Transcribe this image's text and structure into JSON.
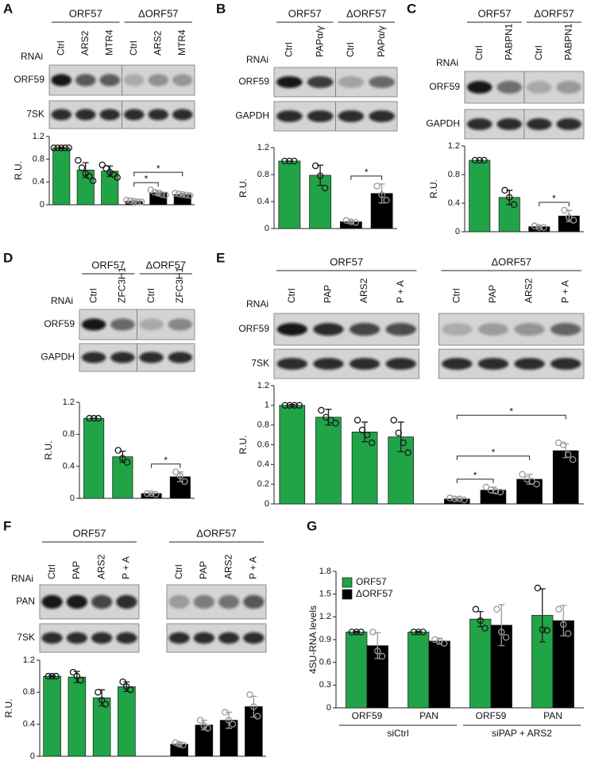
{
  "chart_data": [
    {
      "type": "bar",
      "panel": "A",
      "groups": [
        "ORF57",
        "ΔORF57"
      ],
      "rnai_label": "RNAi",
      "lanes": [
        "Ctrl",
        "ARS2",
        "MTR4",
        "Ctrl",
        "ARS2",
        "MTR4"
      ],
      "blots": [
        "ORF59",
        "7SK"
      ],
      "ylabel": "R.U.",
      "values": [
        1.0,
        0.61,
        0.59,
        0.06,
        0.21,
        0.18
      ],
      "errors": [
        0.01,
        0.13,
        0.09,
        0.02,
        0.04,
        0.02
      ],
      "points": [
        [
          1,
          1,
          1,
          1,
          1
        ],
        [
          0.78,
          0.65,
          0.55,
          0.5,
          0.42
        ],
        [
          0.7,
          0.64,
          0.57,
          0.53,
          0.48
        ],
        [
          0.08,
          0.07,
          0.06,
          0.05,
          0.05
        ],
        [
          0.26,
          0.22,
          0.2,
          0.18,
          0.17
        ],
        [
          0.2,
          0.19,
          0.18,
          0.17,
          0.16
        ]
      ],
      "colors": [
        "#21a448",
        "#000000"
      ],
      "ylim": [
        0,
        1.2
      ],
      "yticks": [
        0,
        0.4,
        0.8,
        1.2
      ],
      "significance": [
        {
          "from": 3,
          "to": 4,
          "label": "*"
        },
        {
          "from": 3,
          "to": 5,
          "label": "*"
        }
      ]
    },
    {
      "type": "bar",
      "panel": "B",
      "groups": [
        "ORF57",
        "ΔORF57"
      ],
      "rnai_label": "RNAi",
      "lanes": [
        "Ctrl",
        "PAPα/γ",
        "Ctrl",
        "PAPα/γ"
      ],
      "blots": [
        "ORF59",
        "GAPDH"
      ],
      "ylabel": "R.U.",
      "values": [
        1.0,
        0.79,
        0.1,
        0.52
      ],
      "errors": [
        0.0,
        0.15,
        0.02,
        0.14
      ],
      "points": [
        [
          1,
          1,
          1
        ],
        [
          0.93,
          0.78,
          0.6
        ],
        [
          0.12,
          0.1,
          0.09
        ],
        [
          0.63,
          0.5,
          0.42
        ]
      ],
      "colors": [
        "#21a448",
        "#000000"
      ],
      "ylim": [
        0,
        1.2
      ],
      "yticks": [
        0,
        0.4,
        0.8,
        1.2
      ],
      "significance": [
        {
          "from": 2,
          "to": 3,
          "label": "*"
        }
      ]
    },
    {
      "type": "bar",
      "panel": "C",
      "groups": [
        "ORF57",
        "ΔORF57"
      ],
      "rnai_label": "RNAi",
      "lanes": [
        "Ctrl",
        "PABPN1",
        "Ctrl",
        "PABPN1"
      ],
      "blots": [
        "ORF59",
        "GAPDH"
      ],
      "ylabel": "R.U.",
      "values": [
        1.0,
        0.48,
        0.07,
        0.22
      ],
      "errors": [
        0.0,
        0.1,
        0.02,
        0.08
      ],
      "points": [
        [
          1,
          1,
          1
        ],
        [
          0.58,
          0.48,
          0.38
        ],
        [
          0.08,
          0.06,
          0.06
        ],
        [
          0.3,
          0.2,
          0.16
        ]
      ],
      "colors": [
        "#21a448",
        "#000000"
      ],
      "ylim": [
        0,
        1.2
      ],
      "yticks": [
        0,
        0.4,
        0.8,
        1.2
      ],
      "significance": [
        {
          "from": 2,
          "to": 3,
          "label": "*"
        }
      ]
    },
    {
      "type": "bar",
      "panel": "D",
      "groups": [
        "ORF57",
        "ΔORF57"
      ],
      "rnai_label": "RNAi",
      "lanes": [
        "Ctrl",
        "ZFC3H1",
        "Ctrl",
        "ZFC3H1"
      ],
      "blots": [
        "ORF59",
        "GAPDH"
      ],
      "ylabel": "R.U.",
      "values": [
        1.0,
        0.52,
        0.06,
        0.27
      ],
      "errors": [
        0.0,
        0.07,
        0.01,
        0.06
      ],
      "points": [
        [
          1,
          1,
          1
        ],
        [
          0.6,
          0.5,
          0.45
        ],
        [
          0.06,
          0.06,
          0.05
        ],
        [
          0.33,
          0.28,
          0.21
        ]
      ],
      "colors": [
        "#21a448",
        "#000000"
      ],
      "ylim": [
        0,
        1.2
      ],
      "yticks": [
        0,
        0.4,
        0.8,
        1.2
      ],
      "significance": [
        {
          "from": 2,
          "to": 3,
          "label": "*"
        }
      ]
    },
    {
      "type": "bar",
      "panel": "E",
      "groups": [
        "ORF57",
        "ΔORF57"
      ],
      "rnai_label": "RNAi",
      "lanes": [
        "Ctrl",
        "PAP",
        "ARS2",
        "P + A",
        "Ctrl",
        "PAP",
        "ARS2",
        "P + A"
      ],
      "blots": [
        "ORF59",
        "7SK"
      ],
      "ylabel": "R.U.",
      "values": [
        1.0,
        0.88,
        0.73,
        0.68,
        0.05,
        0.14,
        0.25,
        0.54
      ],
      "errors": [
        0.01,
        0.08,
        0.1,
        0.15,
        0.01,
        0.03,
        0.05,
        0.07
      ],
      "points": [
        [
          1,
          1,
          1,
          1
        ],
        [
          0.95,
          0.88,
          0.85,
          0.82
        ],
        [
          0.85,
          0.75,
          0.7,
          0.62
        ],
        [
          0.85,
          0.72,
          0.62,
          0.52
        ],
        [
          0.06,
          0.05,
          0.05,
          0.04
        ],
        [
          0.17,
          0.14,
          0.13,
          0.12
        ],
        [
          0.3,
          0.25,
          0.23,
          0.2
        ],
        [
          0.62,
          0.6,
          0.5,
          0.45
        ]
      ],
      "colors": [
        "#21a448",
        "#000000"
      ],
      "ylim": [
        0,
        1.2
      ],
      "yticks": [
        0,
        0.2,
        0.4,
        0.6,
        0.8,
        1,
        1.2
      ],
      "significance": [
        {
          "from": 4,
          "to": 5,
          "label": "*"
        },
        {
          "from": 4,
          "to": 6,
          "label": "*"
        },
        {
          "from": 4,
          "to": 7,
          "label": "*"
        }
      ]
    },
    {
      "type": "bar",
      "panel": "F",
      "groups": [
        "ORF57",
        "ΔORF57"
      ],
      "rnai_label": "RNAi",
      "lanes": [
        "Ctrl",
        "PAP",
        "ARS2",
        "P + A",
        "Ctrl",
        "PAP",
        "ARS2",
        "P + A"
      ],
      "blots": [
        "PAN",
        "7SK"
      ],
      "ylabel": "R.U.",
      "values": [
        1.0,
        0.99,
        0.73,
        0.87,
        0.15,
        0.39,
        0.45,
        0.62
      ],
      "errors": [
        0.01,
        0.07,
        0.1,
        0.06,
        0.02,
        0.06,
        0.1,
        0.13
      ],
      "points": [
        [
          1,
          1,
          1
        ],
        [
          1.05,
          1.0,
          0.95
        ],
        [
          0.8,
          0.7,
          0.65
        ],
        [
          0.93,
          0.87,
          0.83
        ],
        [
          0.17,
          0.15,
          0.14
        ],
        [
          0.45,
          0.38,
          0.35
        ],
        [
          0.55,
          0.45,
          0.4
        ],
        [
          0.77,
          0.62,
          0.5
        ]
      ],
      "colors": [
        "#21a448",
        "#000000"
      ],
      "ylim": [
        0,
        1.2
      ],
      "yticks": [
        0,
        0.4,
        0.8,
        1.2
      ],
      "significance": []
    },
    {
      "type": "grouped_bar",
      "panel": "G",
      "ylabel": "4SU-RNA levels",
      "categories": [
        "ORF59",
        "PAN",
        "ORF59",
        "PAN"
      ],
      "supergroups": [
        "siCtrl",
        "siPAP + ARS2"
      ],
      "series": [
        {
          "name": "ORF57",
          "color": "#21a448",
          "values": [
            1.0,
            1.0,
            1.17,
            1.22
          ],
          "errors": [
            0.01,
            0.01,
            0.1,
            0.35
          ],
          "points": [
            [
              1,
              1,
              1
            ],
            [
              1,
              1,
              1
            ],
            [
              1.3,
              1.15,
              1.05
            ],
            [
              1.58,
              1.03,
              1.02
            ]
          ]
        },
        {
          "name": "ΔORF57",
          "color": "#000000",
          "values": [
            0.82,
            0.88,
            1.09,
            1.15
          ],
          "errors": [
            0.17,
            0.04,
            0.27,
            0.2
          ],
          "points": [
            [
              1,
              0.75,
              0.68
            ],
            [
              0.9,
              0.88,
              0.85
            ],
            [
              1.3,
              1.0,
              0.93
            ],
            [
              1.3,
              1.1,
              0.98
            ]
          ]
        }
      ],
      "ylim": [
        0,
        1.8
      ],
      "yticks": [
        0,
        0.3,
        0.6,
        0.9,
        1.2,
        1.5,
        1.8
      ],
      "legend": "top-left"
    }
  ]
}
